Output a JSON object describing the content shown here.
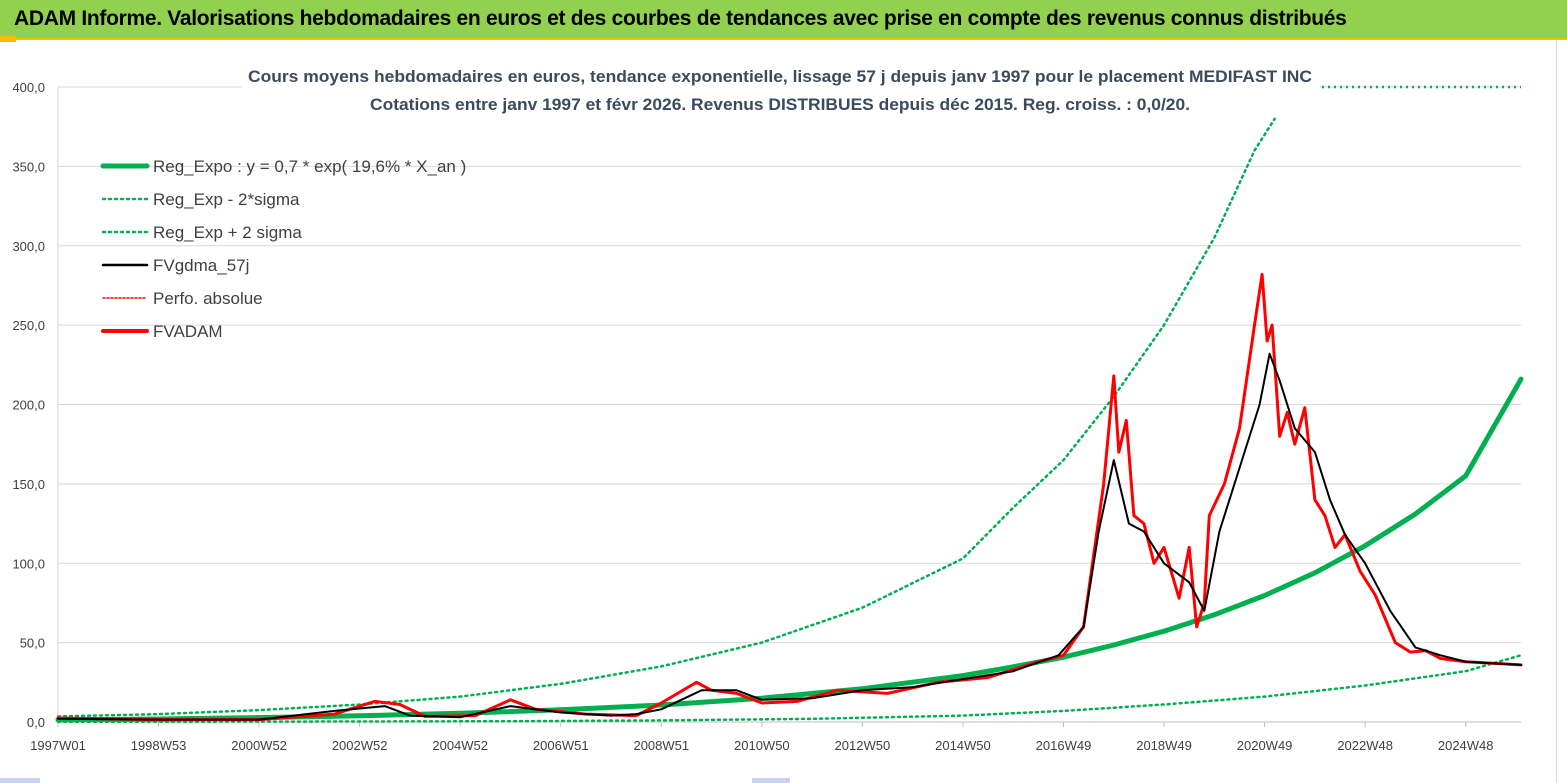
{
  "header": {
    "title": "ADAM Informe. Valorisations hebdomadaires en euros et des courbes de tendances avec prise en compte des revenus connus distribués"
  },
  "colors": {
    "header_bg": "#92d050",
    "reg_expo": "#00b050",
    "sigma_lines": "#00b050",
    "gdma": "#000000",
    "fvadam": "#ff0000",
    "title_text": "#3b4a5c"
  },
  "chart_data": {
    "type": "line",
    "title": [
      "Cours moyens hebdomadaires en euros, tendance exponentielle, lissage 57 j depuis janv 1997 pour le placement MEDIFAST INC",
      "Cotations entre janv 1997 et févr 2026. Revenus DISTRIBUES depuis déc 2015. Reg. croiss. : 0,0/20."
    ],
    "xlabel": "",
    "ylabel": "",
    "x_range": [
      1997.0,
      2026.1
    ],
    "ylim": [
      0,
      400
    ],
    "y_ticks": [
      "0,0",
      "50,0",
      "100,0",
      "150,0",
      "200,0",
      "250,0",
      "300,0",
      "350,0",
      "400,0"
    ],
    "x_tick_labels": [
      "1997W01",
      "1998W53",
      "2000W52",
      "2002W52",
      "2004W52",
      "2006W51",
      "2008W51",
      "2010W50",
      "2012W50",
      "2014W50",
      "2016W49",
      "2018W49",
      "2020W49",
      "2022W48",
      "2024W48"
    ],
    "grid": true,
    "legend_position": "top-left",
    "legend": [
      "Reg_Expo : y = 0,7 * exp( 19,6% *  X_an )",
      "Reg_Exp - 2*sigma",
      "Reg_Exp + 2 sigma",
      "FVgdma_57j",
      "Perfo. absolue",
      "FVADAM"
    ],
    "series": [
      {
        "name": "Reg_Expo",
        "formula": "y = 0.7 * exp(0.196 * X_an)",
        "x": [
          1997,
          1999,
          2001,
          2003,
          2005,
          2007,
          2009,
          2011,
          2013,
          2015,
          2016,
          2017,
          2018,
          2019,
          2020,
          2021,
          2022,
          2023,
          2024,
          2025,
          2026.1
        ],
        "values": [
          1.3,
          1.9,
          2.8,
          3.9,
          5.5,
          7.7,
          10.7,
          15.0,
          21.0,
          29.2,
          34.8,
          40.8,
          48.5,
          57.2,
          67.5,
          79.7,
          94.0,
          111.0,
          131.0,
          155.0,
          216.0
        ]
      },
      {
        "name": "Reg_Exp - 2*sigma",
        "x": [
          1997,
          2000,
          2003,
          2006,
          2009,
          2012,
          2015,
          2017,
          2019,
          2021,
          2023,
          2025,
          2026.1
        ],
        "values": [
          0.1,
          0.2,
          0.3,
          0.5,
          1.0,
          2.0,
          4.0,
          7.0,
          11.0,
          16.0,
          23.0,
          32.0,
          42.0
        ]
      },
      {
        "name": "Reg_Exp + 2 sigma",
        "x": [
          1997,
          1999,
          2001,
          2003,
          2005,
          2007,
          2009,
          2011,
          2013,
          2015,
          2016,
          2017,
          2018,
          2019,
          2020,
          2020.8,
          2021.2
        ],
        "values": [
          3.5,
          5.0,
          7.5,
          11.0,
          16.0,
          24.0,
          35.0,
          50.0,
          72.0,
          103.0,
          135.0,
          165.0,
          205.0,
          250.0,
          305.0,
          360.0,
          380.0
        ]
      },
      {
        "name": "FVgdma_57j",
        "x": [
          1997,
          1999,
          2001,
          2002.5,
          2003.5,
          2004,
          2005,
          2006,
          2007,
          2008,
          2008.5,
          2009,
          2009.8,
          2010.5,
          2011,
          2012,
          2013,
          2014,
          2015,
          2016,
          2016.9,
          2017.4,
          2017.7,
          2018.0,
          2018.3,
          2018.6,
          2019.0,
          2019.5,
          2019.8,
          2020.1,
          2020.5,
          2020.9,
          2021.1,
          2021.3,
          2021.6,
          2022.0,
          2022.3,
          2022.6,
          2023.0,
          2023.5,
          2024.0,
          2024.5,
          2025.0,
          2026.1
        ],
        "values": [
          2.0,
          1.5,
          1.5,
          7.0,
          10.0,
          4.0,
          3.0,
          10.0,
          6.0,
          4.0,
          5.0,
          8.0,
          20.0,
          20.0,
          14.0,
          15.0,
          20.0,
          22.0,
          27.0,
          32.0,
          42.0,
          60.0,
          120.0,
          165.0,
          125.0,
          120.0,
          100.0,
          88.0,
          70.0,
          120.0,
          160.0,
          200.0,
          232.0,
          215.0,
          185.0,
          170.0,
          140.0,
          118.0,
          100.0,
          70.0,
          47.0,
          42.0,
          38.0,
          36.0
        ]
      },
      {
        "name": "Perfo. absolue",
        "x": [],
        "values": []
      },
      {
        "name": "FVADAM",
        "x": [
          1997,
          1999,
          2001,
          2002.5,
          2003.3,
          2003.8,
          2004.3,
          2005.3,
          2006.0,
          2006.5,
          2007.5,
          2008.5,
          2009.0,
          2009.7,
          2010.0,
          2010.5,
          2011.0,
          2011.7,
          2012.5,
          2013.5,
          2014.5,
          2015.5,
          2016.5,
          2017.0,
          2017.4,
          2017.8,
          2018.0,
          2018.1,
          2018.25,
          2018.4,
          2018.6,
          2018.8,
          2019.0,
          2019.3,
          2019.5,
          2019.65,
          2019.8,
          2019.9,
          2020.2,
          2020.5,
          2020.8,
          2020.95,
          2021.05,
          2021.15,
          2021.3,
          2021.45,
          2021.6,
          2021.8,
          2022.0,
          2022.2,
          2022.4,
          2022.6,
          2022.9,
          2023.2,
          2023.6,
          2023.9,
          2024.2,
          2024.5,
          2025.0,
          2026.1
        ],
        "values": [
          2.5,
          1.5,
          1.5,
          5.0,
          13.0,
          11.0,
          3.5,
          4.0,
          14.0,
          8.0,
          5.0,
          4.0,
          12.0,
          25.0,
          20.0,
          18.0,
          12.0,
          13.0,
          20.0,
          18.0,
          25.0,
          28.0,
          38.0,
          42.0,
          60.0,
          150.0,
          218.0,
          170.0,
          190.0,
          130.0,
          125.0,
          100.0,
          110.0,
          78.0,
          110.0,
          60.0,
          75.0,
          130.0,
          150.0,
          185.0,
          250.0,
          282.0,
          240.0,
          250.0,
          180.0,
          195.0,
          175.0,
          198.0,
          140.0,
          130.0,
          110.0,
          118.0,
          95.0,
          80.0,
          50.0,
          44.0,
          45.0,
          40.0,
          38.0,
          36.0
        ]
      }
    ]
  }
}
